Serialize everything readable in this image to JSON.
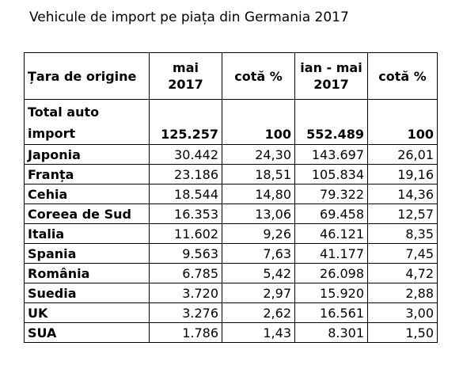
{
  "title": "Vehicule de import pe piața din Germania 2017",
  "table": {
    "headers": [
      "Țara de origine",
      "mai 2017",
      "cotă %",
      "ian - mai 2017",
      "cotă %"
    ],
    "total": {
      "label": "Total auto import",
      "mai": "125.257",
      "cota_mai": "100",
      "ian_mai": "552.489",
      "cota_ian": "100"
    },
    "rows": [
      {
        "country": "Japonia",
        "mai": "30.442",
        "cota_mai": "24,30",
        "ian_mai": "143.697",
        "cota_ian": "26,01"
      },
      {
        "country": "Franța",
        "mai": "23.186",
        "cota_mai": "18,51",
        "ian_mai": "105.834",
        "cota_ian": "19,16"
      },
      {
        "country": "Cehia",
        "mai": "18.544",
        "cota_mai": "14,80",
        "ian_mai": "79.322",
        "cota_ian": "14,36"
      },
      {
        "country": "Coreea de Sud",
        "mai": "16.353",
        "cota_mai": "13,06",
        "ian_mai": "69.458",
        "cota_ian": "12,57"
      },
      {
        "country": "Italia",
        "mai": "11.602",
        "cota_mai": "9,26",
        "ian_mai": "46.121",
        "cota_ian": "8,35"
      },
      {
        "country": "Spania",
        "mai": "9.563",
        "cota_mai": "7,63",
        "ian_mai": "41.177",
        "cota_ian": "7,45"
      },
      {
        "country": "România",
        "mai": "6.785",
        "cota_mai": "5,42",
        "ian_mai": "26.098",
        "cota_ian": "4,72"
      },
      {
        "country": "Suedia",
        "mai": "3.720",
        "cota_mai": "2,97",
        "ian_mai": "15.920",
        "cota_ian": "2,88"
      },
      {
        "country": "UK",
        "mai": "3.276",
        "cota_mai": "2,62",
        "ian_mai": "16.561",
        "cota_ian": "3,00"
      },
      {
        "country": "SUA",
        "mai": "1.786",
        "cota_mai": "1,43",
        "ian_mai": "8.301",
        "cota_ian": "1,50"
      }
    ]
  }
}
